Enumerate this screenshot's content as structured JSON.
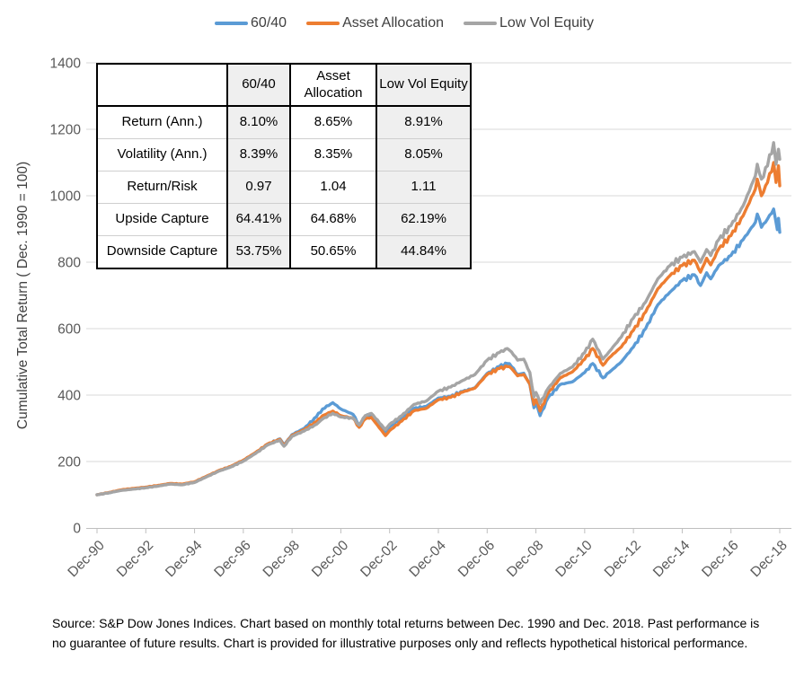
{
  "chart_data": {
    "type": "line",
    "title": "",
    "xlabel": "",
    "ylabel": "Cumulative Total Return ( Dec. 1990 = 100)",
    "ylim": [
      0,
      1400
    ],
    "ytick_interval": 200,
    "grid": "horizontal",
    "legend_position": "top",
    "x_unit": "years since Dec-1990 (monthly total return index)",
    "xtick_labels": [
      "Dec-90",
      "Dec-92",
      "Dec-94",
      "Dec-96",
      "Dec-98",
      "Dec-00",
      "Dec-02",
      "Dec-04",
      "Dec-06",
      "Dec-08",
      "Dec-10",
      "Dec-12",
      "Dec-14",
      "Dec-16",
      "Dec-18"
    ],
    "series": [
      {
        "name": "60/40",
        "color": "#5B9BD5",
        "points": [
          [
            0,
            100
          ],
          [
            0.5,
            106
          ],
          [
            1,
            114
          ],
          [
            1.5,
            118
          ],
          [
            2,
            122
          ],
          [
            2.5,
            127
          ],
          [
            3,
            133
          ],
          [
            3.5,
            131
          ],
          [
            4,
            138
          ],
          [
            4.5,
            155
          ],
          [
            5,
            172
          ],
          [
            5.5,
            185
          ],
          [
            6,
            203
          ],
          [
            6.5,
            226
          ],
          [
            7,
            252
          ],
          [
            7.5,
            268
          ],
          [
            7.67,
            250
          ],
          [
            8,
            281
          ],
          [
            8.5,
            300
          ],
          [
            9,
            335
          ],
          [
            9.25,
            358
          ],
          [
            9.67,
            377
          ],
          [
            10,
            358
          ],
          [
            10.5,
            342
          ],
          [
            10.75,
            310
          ],
          [
            11,
            336
          ],
          [
            11.25,
            342
          ],
          [
            11.83,
            289
          ],
          [
            12,
            305
          ],
          [
            12.5,
            331
          ],
          [
            13,
            360
          ],
          [
            13.5,
            366
          ],
          [
            14,
            391
          ],
          [
            14.5,
            396
          ],
          [
            15,
            411
          ],
          [
            15.5,
            422
          ],
          [
            16,
            465
          ],
          [
            16.5,
            486
          ],
          [
            16.83,
            495
          ],
          [
            17,
            486
          ],
          [
            17.25,
            462
          ],
          [
            17.5,
            466
          ],
          [
            17.75,
            432
          ],
          [
            17.92,
            362
          ],
          [
            18,
            376
          ],
          [
            18.17,
            338
          ],
          [
            18.5,
            392
          ],
          [
            19,
            432
          ],
          [
            19.5,
            440
          ],
          [
            20,
            468
          ],
          [
            20.33,
            495
          ],
          [
            20.75,
            452
          ],
          [
            21,
            468
          ],
          [
            21.5,
            500
          ],
          [
            22,
            545
          ],
          [
            22.5,
            600
          ],
          [
            23,
            672
          ],
          [
            23.5,
            710
          ],
          [
            24,
            745
          ],
          [
            24.5,
            762
          ],
          [
            24.75,
            730
          ],
          [
            25,
            768
          ],
          [
            25.17,
            750
          ],
          [
            25.5,
            790
          ],
          [
            26,
            820
          ],
          [
            26.5,
            868
          ],
          [
            27,
            920
          ],
          [
            27.08,
            945
          ],
          [
            27.25,
            905
          ],
          [
            27.5,
            930
          ],
          [
            27.75,
            960
          ],
          [
            27.9,
            898
          ],
          [
            27.95,
            932
          ],
          [
            28,
            890
          ]
        ]
      },
      {
        "name": "Asset Allocation",
        "color": "#ED7D31",
        "points": [
          [
            0,
            100
          ],
          [
            0.5,
            107
          ],
          [
            1,
            115
          ],
          [
            1.5,
            119
          ],
          [
            2,
            123
          ],
          [
            2.5,
            128
          ],
          [
            3,
            134
          ],
          [
            3.5,
            132
          ],
          [
            4,
            139
          ],
          [
            4.5,
            156
          ],
          [
            5,
            173
          ],
          [
            5.5,
            186
          ],
          [
            6,
            204
          ],
          [
            6.5,
            227
          ],
          [
            7,
            253
          ],
          [
            7.5,
            267
          ],
          [
            7.67,
            249
          ],
          [
            8,
            279
          ],
          [
            8.5,
            296
          ],
          [
            9,
            320
          ],
          [
            9.25,
            338
          ],
          [
            9.67,
            352
          ],
          [
            10,
            338
          ],
          [
            10.5,
            330
          ],
          [
            10.75,
            303
          ],
          [
            11,
            328
          ],
          [
            11.25,
            333
          ],
          [
            11.83,
            278
          ],
          [
            12,
            293
          ],
          [
            12.5,
            322
          ],
          [
            13,
            353
          ],
          [
            13.5,
            360
          ],
          [
            14,
            386
          ],
          [
            14.5,
            393
          ],
          [
            15,
            409
          ],
          [
            15.5,
            421
          ],
          [
            16,
            462
          ],
          [
            16.5,
            480
          ],
          [
            16.83,
            486
          ],
          [
            17,
            480
          ],
          [
            17.25,
            458
          ],
          [
            17.5,
            462
          ],
          [
            17.75,
            434
          ],
          [
            17.92,
            372
          ],
          [
            18,
            386
          ],
          [
            18.17,
            352
          ],
          [
            18.5,
            406
          ],
          [
            19,
            452
          ],
          [
            19.5,
            470
          ],
          [
            20,
            508
          ],
          [
            20.33,
            540
          ],
          [
            20.75,
            490
          ],
          [
            21,
            512
          ],
          [
            21.5,
            545
          ],
          [
            22,
            595
          ],
          [
            22.5,
            650
          ],
          [
            23,
            720
          ],
          [
            23.5,
            760
          ],
          [
            24,
            790
          ],
          [
            24.5,
            806
          ],
          [
            24.75,
            770
          ],
          [
            25,
            812
          ],
          [
            25.17,
            792
          ],
          [
            25.5,
            840
          ],
          [
            26,
            880
          ],
          [
            26.5,
            940
          ],
          [
            27,
            1020
          ],
          [
            27.08,
            1050
          ],
          [
            27.25,
            1000
          ],
          [
            27.5,
            1040
          ],
          [
            27.75,
            1100
          ],
          [
            27.85,
            1040
          ],
          [
            27.95,
            1090
          ],
          [
            28,
            1030
          ]
        ]
      },
      {
        "name": "Low Vol Equity",
        "color": "#A5A5A5",
        "points": [
          [
            0,
            100
          ],
          [
            0.5,
            106
          ],
          [
            1,
            113
          ],
          [
            1.5,
            117
          ],
          [
            2,
            121
          ],
          [
            2.5,
            126
          ],
          [
            3,
            132
          ],
          [
            3.5,
            130
          ],
          [
            4,
            137
          ],
          [
            4.5,
            154
          ],
          [
            5,
            171
          ],
          [
            5.5,
            184
          ],
          [
            6,
            201
          ],
          [
            6.5,
            224
          ],
          [
            7,
            250
          ],
          [
            7.5,
            264
          ],
          [
            7.67,
            246
          ],
          [
            8,
            276
          ],
          [
            8.5,
            292
          ],
          [
            9,
            312
          ],
          [
            9.25,
            328
          ],
          [
            9.67,
            345
          ],
          [
            10,
            334
          ],
          [
            10.5,
            330
          ],
          [
            10.75,
            310
          ],
          [
            11,
            338
          ],
          [
            11.25,
            345
          ],
          [
            11.83,
            296
          ],
          [
            12,
            312
          ],
          [
            12.5,
            338
          ],
          [
            13,
            372
          ],
          [
            13.5,
            382
          ],
          [
            14,
            412
          ],
          [
            14.5,
            424
          ],
          [
            15,
            444
          ],
          [
            15.5,
            462
          ],
          [
            16,
            505
          ],
          [
            16.5,
            528
          ],
          [
            16.83,
            540
          ],
          [
            17,
            530
          ],
          [
            17.25,
            505
          ],
          [
            17.5,
            508
          ],
          [
            17.75,
            468
          ],
          [
            17.92,
            395
          ],
          [
            18,
            408
          ],
          [
            18.17,
            375
          ],
          [
            18.5,
            420
          ],
          [
            19,
            465
          ],
          [
            19.5,
            485
          ],
          [
            20,
            528
          ],
          [
            20.33,
            568
          ],
          [
            20.75,
            508
          ],
          [
            21,
            530
          ],
          [
            21.5,
            575
          ],
          [
            22,
            632
          ],
          [
            22.5,
            680
          ],
          [
            23,
            750
          ],
          [
            23.5,
            790
          ],
          [
            24,
            815
          ],
          [
            24.5,
            832
          ],
          [
            24.75,
            800
          ],
          [
            25,
            838
          ],
          [
            25.17,
            820
          ],
          [
            25.5,
            868
          ],
          [
            26,
            910
          ],
          [
            26.5,
            970
          ],
          [
            27,
            1060
          ],
          [
            27.08,
            1095
          ],
          [
            27.25,
            1050
          ],
          [
            27.5,
            1090
          ],
          [
            27.75,
            1160
          ],
          [
            27.85,
            1095
          ],
          [
            27.95,
            1140
          ],
          [
            28,
            1110
          ]
        ]
      }
    ]
  },
  "stats_table": {
    "columns": [
      "",
      "60/40",
      "Asset Allocation",
      "Low Vol Equity"
    ],
    "rows": [
      {
        "label": "Return (Ann.)",
        "values": [
          "8.10%",
          "8.65%",
          "8.91%"
        ]
      },
      {
        "label": "Volatility (Ann.)",
        "values": [
          "8.39%",
          "8.35%",
          "8.05%"
        ]
      },
      {
        "label": "Return/Risk",
        "values": [
          "0.97",
          "1.04",
          "1.11"
        ]
      },
      {
        "label": "Upside Capture",
        "values": [
          "64.41%",
          "64.68%",
          "62.19%"
        ]
      },
      {
        "label": "Downside Capture",
        "values": [
          "53.75%",
          "50.65%",
          "44.84%"
        ]
      }
    ]
  },
  "footnote": "Source: S&P Dow Jones Indices.  Chart based on monthly total returns between Dec. 1990 and Dec. 2018. Past performance is no guarantee of future results.  Chart is provided for illustrative purposes only and reflects hypothetical historical performance.",
  "colors": {
    "series_blue": "#5B9BD5",
    "series_orange": "#ED7D31",
    "series_gray": "#A5A5A5",
    "gridline": "#D9D9D9",
    "axis_line": "#BFBFBF",
    "tick_text": "#595959",
    "legend_text": "#404040",
    "table_shade": "#EFEFEF"
  }
}
